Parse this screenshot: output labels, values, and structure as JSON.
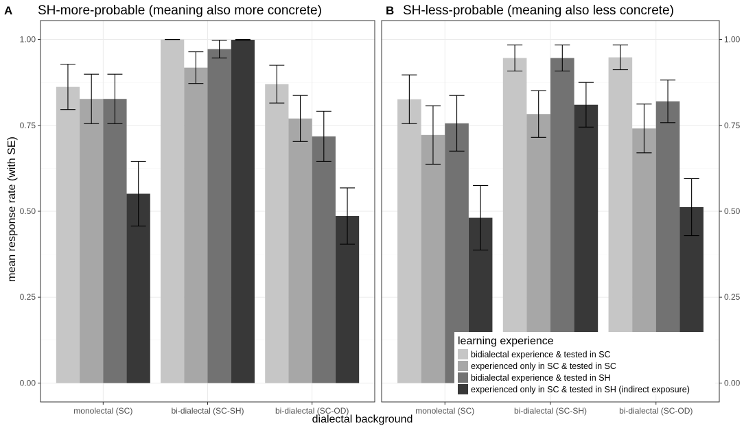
{
  "chart_data": {
    "type": "bar",
    "xlabel": "dialectal background",
    "ylabel": "mean response rate (with SE)",
    "ylim": [
      0,
      1
    ],
    "yticks": [
      0.0,
      0.25,
      0.5,
      0.75,
      1.0
    ],
    "ytick_labels": [
      "0.00",
      "0.25",
      "0.50",
      "0.75",
      "1.00"
    ],
    "categories": [
      "monolectal (SC)",
      "bi-dialectal (SC-SH)",
      "bi-dialectal (SC-OD)"
    ],
    "legend": {
      "title": "learning experience",
      "position": "bottom-right",
      "entries": [
        {
          "label": "bidialectal experience & tested in SC",
          "color": "#c6c6c6"
        },
        {
          "label": "experienced only in SC & tested in SC",
          "color": "#a7a7a7"
        },
        {
          "label": "bidialectal experience & tested in SH",
          "color": "#727272"
        },
        {
          "label": "experienced only in SC & tested in SH (indirect exposure)",
          "color": "#383838"
        }
      ]
    },
    "panels": [
      {
        "letter": "A",
        "title": "SH-more-probable (meaning also more concrete)",
        "yaxis_side": "left",
        "series": [
          {
            "name": "bidialectal experience & tested in SC",
            "values": [
              0.862,
              1.0,
              0.87
            ],
            "se": [
              0.066,
              0.0,
              0.055
            ]
          },
          {
            "name": "experienced only in SC & tested in SC",
            "values": [
              0.827,
              0.918,
              0.77
            ],
            "se": [
              0.072,
              0.046,
              0.067
            ]
          },
          {
            "name": "bidialectal experience & tested in SH",
            "values": [
              0.827,
              0.972,
              0.718
            ],
            "se": [
              0.072,
              0.026,
              0.073
            ]
          },
          {
            "name": "experienced only in SC & tested in SH (indirect exposure)",
            "values": [
              0.551,
              0.999,
              0.486
            ],
            "se": [
              0.094,
              0.001,
              0.082
            ]
          }
        ]
      },
      {
        "letter": "B",
        "title": "SH-less-probable (meaning also less concrete)",
        "yaxis_side": "right",
        "series": [
          {
            "name": "bidialectal experience & tested in SC",
            "values": [
              0.826,
              0.946,
              0.948
            ],
            "se": [
              0.071,
              0.038,
              0.036
            ]
          },
          {
            "name": "experienced only in SC & tested in SC",
            "values": [
              0.722,
              0.783,
              0.741
            ],
            "se": [
              0.085,
              0.068,
              0.071
            ]
          },
          {
            "name": "bidialectal experience & tested in SH",
            "values": [
              0.756,
              0.946,
              0.82
            ],
            "se": [
              0.081,
              0.038,
              0.062
            ]
          },
          {
            "name": "experienced only in SC & tested in SH (indirect exposure)",
            "values": [
              0.481,
              0.81,
              0.512
            ],
            "se": [
              0.094,
              0.065,
              0.083
            ]
          }
        ]
      }
    ]
  }
}
